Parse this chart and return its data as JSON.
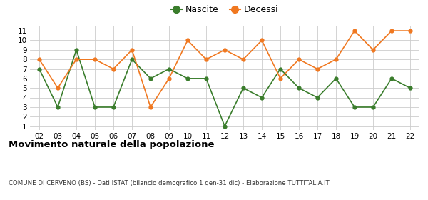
{
  "years": [
    "02",
    "03",
    "04",
    "05",
    "06",
    "07",
    "08",
    "09",
    "10",
    "11",
    "12",
    "13",
    "14",
    "15",
    "16",
    "17",
    "18",
    "19",
    "20",
    "21",
    "22"
  ],
  "nascite": [
    7,
    3,
    9,
    3,
    3,
    8,
    6,
    7,
    6,
    6,
    1,
    5,
    4,
    7,
    5,
    4,
    6,
    3,
    3,
    6,
    5
  ],
  "decessi": [
    8,
    5,
    8,
    8,
    7,
    9,
    3,
    6,
    10,
    8,
    9,
    8,
    10,
    6,
    8,
    7,
    8,
    11,
    9,
    11,
    11
  ],
  "nascite_color": "#3a7d2c",
  "decessi_color": "#f07820",
  "title": "Movimento naturale della popolazione",
  "subtitle": "COMUNE DI CERVENO (BS) - Dati ISTAT (bilancio demografico 1 gen-31 dic) - Elaborazione TUTTITALIA.IT",
  "ylim_min": 1,
  "ylim_max": 11,
  "yticks": [
    1,
    2,
    3,
    4,
    5,
    6,
    7,
    8,
    9,
    10,
    11
  ],
  "legend_nascite": "Nascite",
  "legend_decessi": "Decessi",
  "background_color": "#ffffff",
  "grid_color": "#cccccc"
}
